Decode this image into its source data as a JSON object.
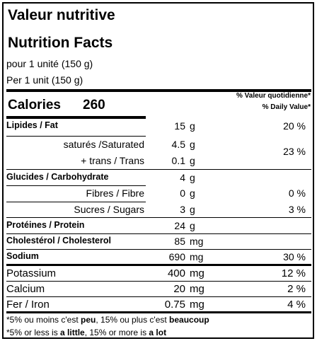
{
  "header": {
    "title_fr": "Valeur nutritive",
    "title_en": "Nutrition Facts",
    "serving_fr": "pour 1 unité (150 g)",
    "serving_en": "Per 1 unit (150 g)"
  },
  "calories": {
    "label": "Calories",
    "value": "260",
    "dv_fr": "% Valeur quotidienne*",
    "dv_en": "% Daily Value*"
  },
  "nutrients": {
    "fat": {
      "label": "Lipides / Fat",
      "qty": "15",
      "unit": "g",
      "pct": "20 %"
    },
    "saturated": {
      "label": "saturés /Saturated",
      "qty": "4.5",
      "unit": "g"
    },
    "trans": {
      "label": "+ trans / Trans",
      "qty": "0.1",
      "unit": "g"
    },
    "sat_trans_pct": "23 %",
    "carb": {
      "label": "Glucides / Carbohydrate",
      "qty": "4",
      "unit": "g"
    },
    "fibre": {
      "label": "Fibres / Fibre",
      "qty": "0",
      "unit": "g",
      "pct": "0 %"
    },
    "sugars": {
      "label": "Sucres / Sugars",
      "qty": "3",
      "unit": "g",
      "pct": "3 %"
    },
    "protein": {
      "label": "Protéines / Protein",
      "qty": "24",
      "unit": "g"
    },
    "cholesterol": {
      "label": "Cholestérol / Cholesterol",
      "qty": "85",
      "unit": "mg"
    },
    "sodium": {
      "label": "Sodium",
      "qty": "690",
      "unit": "mg",
      "pct": "30 %"
    },
    "potassium": {
      "label": "Potassium",
      "qty": "400",
      "unit": "mg",
      "pct": "12 %"
    },
    "calcium": {
      "label": "Calcium",
      "qty": "20",
      "unit": "mg",
      "pct": "2 %"
    },
    "iron": {
      "label": "Fer / Iron",
      "qty": "0.75",
      "unit": "mg",
      "pct": "4 %"
    }
  },
  "footnote": {
    "fr_a": "*5% ou moins c'est ",
    "fr_b": "peu",
    "fr_c": ", 15% ou plus c'est ",
    "fr_d": "beaucoup",
    "en_a": "*5% or less is ",
    "en_b": "a little",
    "en_c": ", 15% or more is ",
    "en_d": "a lot"
  }
}
